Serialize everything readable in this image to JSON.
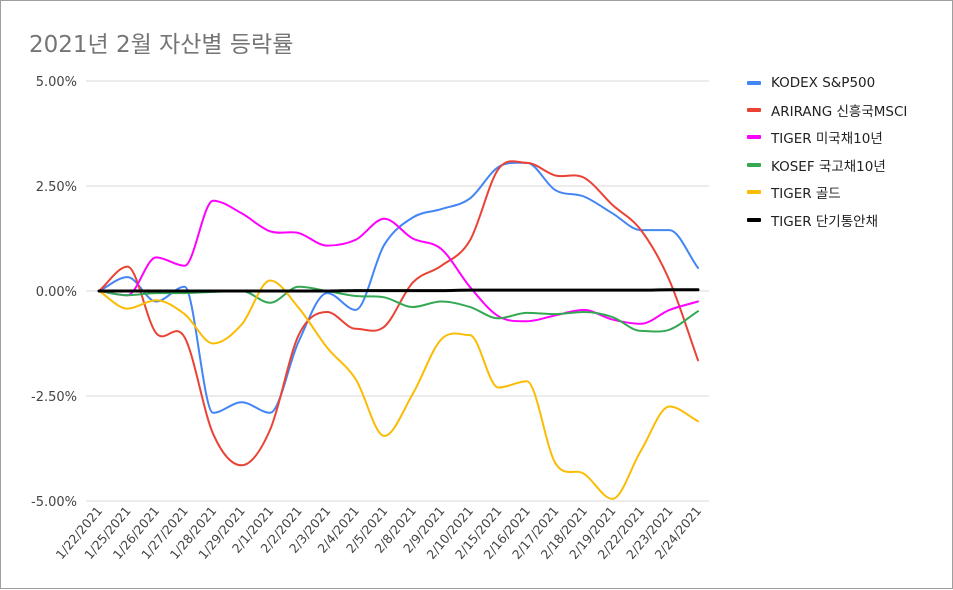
{
  "chart_data": {
    "type": "line",
    "title": "2021년 2월 자산별 등락률",
    "xlabel": "",
    "ylabel": "",
    "categories": [
      "1/22/2021",
      "1/25/2021",
      "1/26/2021",
      "1/27/2021",
      "1/28/2021",
      "1/29/2021",
      "2/1/2021",
      "2/2/2021",
      "2/3/2021",
      "2/4/2021",
      "2/5/2021",
      "2/8/2021",
      "2/9/2021",
      "2/10/2021",
      "2/15/2021",
      "2/16/2021",
      "2/17/2021",
      "2/18/2021",
      "2/19/2021",
      "2/22/2021",
      "2/23/2021",
      "2/24/2021"
    ],
    "y_ticks": [
      "5.00%",
      "2.50%",
      "0.00%",
      "-2.50%",
      "-5.00%"
    ],
    "ylim": [
      -5.0,
      5.0
    ],
    "y_unit": "%",
    "grid": true,
    "legend_position": "right",
    "series": [
      {
        "name": "KODEX S&P500",
        "color": "#4285f4",
        "values": [
          0.0,
          0.33,
          -0.25,
          0.1,
          -2.9,
          -2.65,
          -2.9,
          -1.2,
          -0.05,
          -0.45,
          1.1,
          1.75,
          1.95,
          2.2,
          2.95,
          3.05,
          2.4,
          2.25,
          1.85,
          1.45,
          1.45,
          0.55
        ]
      },
      {
        "name": "ARIRANG 신흥국MSCI",
        "color": "#ea4335",
        "values": [
          0.0,
          0.58,
          -1.0,
          -1.1,
          -3.4,
          -4.15,
          -3.3,
          -1.05,
          -0.5,
          -0.9,
          -0.85,
          0.2,
          0.6,
          1.2,
          2.9,
          3.05,
          2.75,
          2.7,
          2.05,
          1.45,
          0.25,
          -1.65
        ]
      },
      {
        "name": "TIGER 미국채10년",
        "color": "#ff00ff",
        "values": [
          0.0,
          -0.1,
          0.8,
          0.6,
          2.15,
          1.85,
          1.42,
          1.38,
          1.08,
          1.22,
          1.72,
          1.25,
          1.0,
          0.1,
          -0.6,
          -0.72,
          -0.58,
          -0.45,
          -0.68,
          -0.78,
          -0.45,
          -0.25
        ]
      },
      {
        "name": "KOSEF 국고채10년",
        "color": "#34a853",
        "values": [
          0.0,
          -0.1,
          -0.05,
          -0.05,
          -0.02,
          0.0,
          -0.28,
          0.1,
          0.0,
          -0.12,
          -0.15,
          -0.38,
          -0.25,
          -0.38,
          -0.65,
          -0.52,
          -0.55,
          -0.5,
          -0.62,
          -0.95,
          -0.92,
          -0.48
        ]
      },
      {
        "name": "TIGER 골드",
        "color": "#fbbc04",
        "values": [
          0.0,
          -0.42,
          -0.22,
          -0.55,
          -1.25,
          -0.8,
          0.25,
          -0.4,
          -1.35,
          -2.1,
          -3.45,
          -2.45,
          -1.15,
          -1.05,
          -2.3,
          -2.15,
          -4.1,
          -4.35,
          -4.95,
          -3.8,
          -2.75,
          -3.1
        ]
      },
      {
        "name": "TIGER 단기통안채",
        "color": "#000000",
        "values": [
          0.0,
          0.0,
          0.0,
          0.0,
          0.0,
          0.0,
          0.0,
          0.0,
          0.0,
          0.01,
          0.01,
          0.01,
          0.01,
          0.02,
          0.02,
          0.02,
          0.02,
          0.02,
          0.02,
          0.02,
          0.03,
          0.03
        ]
      }
    ]
  }
}
